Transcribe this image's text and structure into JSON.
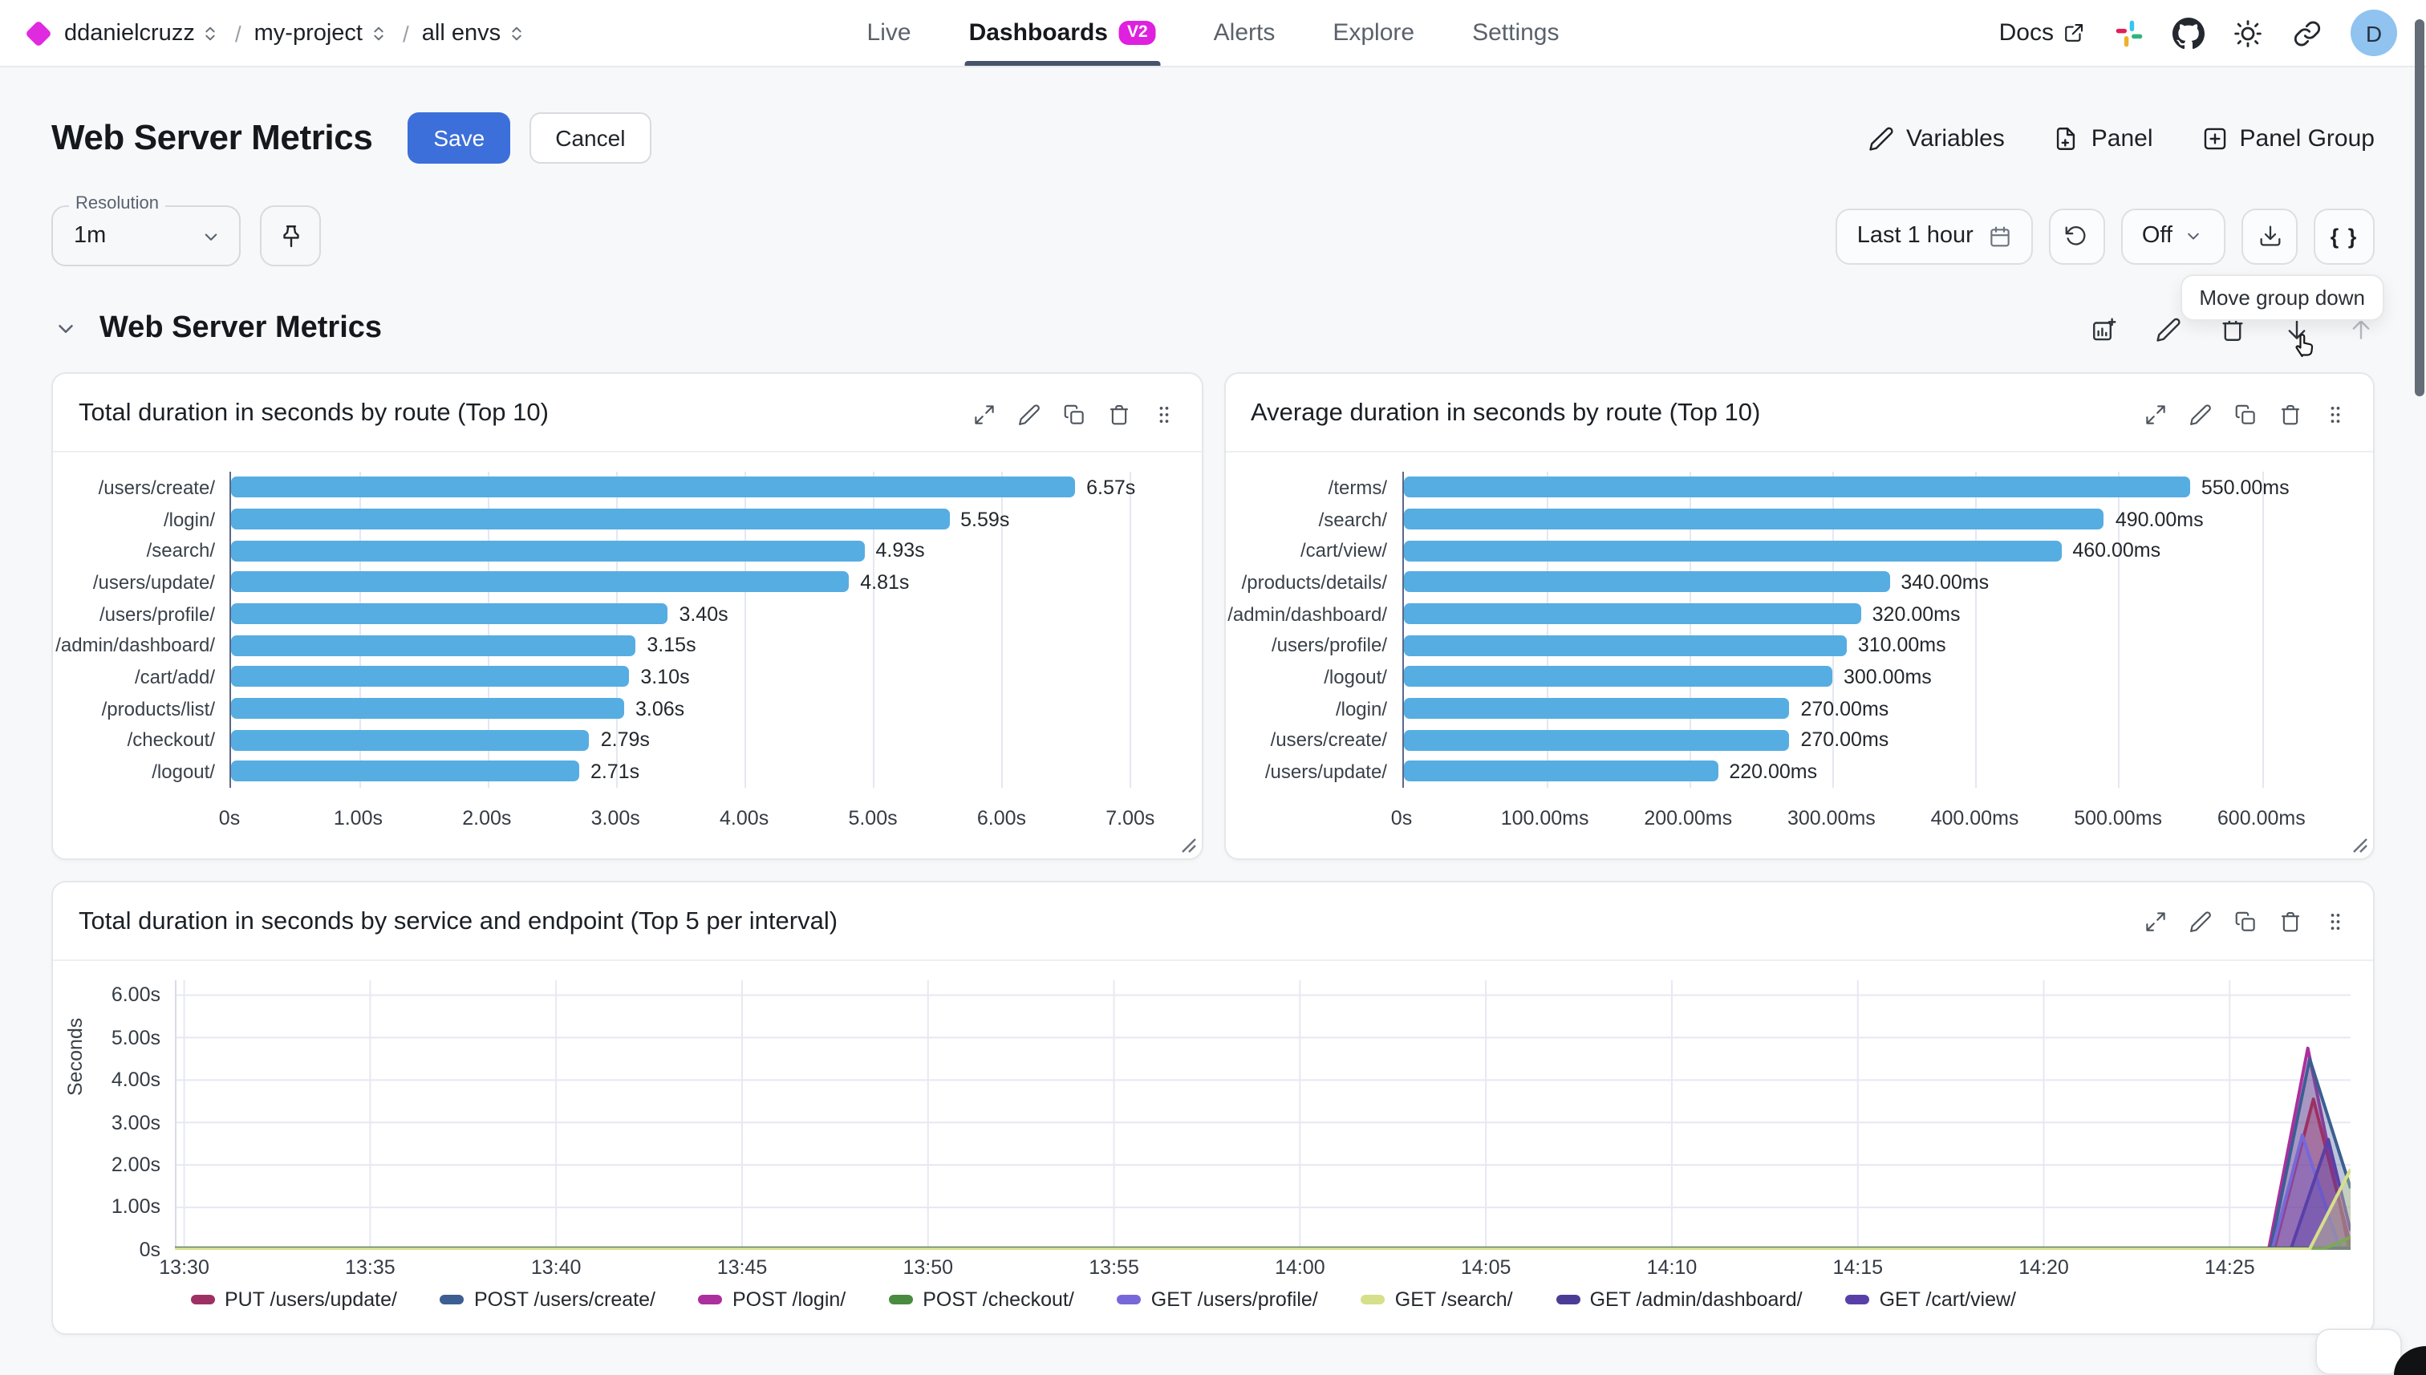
{
  "nav": {
    "breadcrumb": [
      {
        "label": "ddanielcruzz"
      },
      {
        "label": "my-project"
      },
      {
        "label": "all envs"
      }
    ],
    "tabs": [
      {
        "label": "Live",
        "active": false,
        "badge": null
      },
      {
        "label": "Dashboards",
        "active": true,
        "badge": "V2"
      },
      {
        "label": "Alerts",
        "active": false,
        "badge": null
      },
      {
        "label": "Explore",
        "active": false,
        "badge": null
      },
      {
        "label": "Settings",
        "active": false,
        "badge": null
      }
    ],
    "docs_label": "Docs",
    "avatar_initial": "D",
    "badge_color": "#df20df",
    "logo_color": "#e02ae0"
  },
  "page": {
    "title": "Web Server Metrics",
    "save_label": "Save",
    "cancel_label": "Cancel",
    "actions": {
      "variables": "Variables",
      "panel": "Panel",
      "panel_group": "Panel Group"
    }
  },
  "toolbar": {
    "resolution_label": "Resolution",
    "resolution_value": "1m",
    "time_range": "Last 1 hour",
    "auto_refresh": "Off",
    "braces": "{ }"
  },
  "tooltip": "Move group down",
  "group": {
    "title": "Web Server Metrics"
  },
  "panels": [
    {
      "title": "Total duration in seconds by route (Top 10)",
      "chart_data": {
        "type": "bar",
        "bar_color": "#56ade2",
        "categories": [
          "/users/create/",
          "/login/",
          "/search/",
          "/users/update/",
          "/users/profile/",
          "/admin/dashboard/",
          "/cart/add/",
          "/products/list/",
          "/checkout/",
          "/logout/"
        ],
        "values": [
          6.57,
          5.59,
          4.93,
          4.81,
          3.4,
          3.15,
          3.1,
          3.06,
          2.79,
          2.71
        ],
        "value_labels": [
          "6.57s",
          "5.59s",
          "4.93s",
          "4.81s",
          "3.40s",
          "3.15s",
          "3.10s",
          "3.06s",
          "2.79s",
          "2.71s"
        ],
        "xmax": 7.35,
        "ticks": [
          {
            "label": "0s",
            "value": 0
          },
          {
            "label": "1.00s",
            "value": 1
          },
          {
            "label": "2.00s",
            "value": 2
          },
          {
            "label": "3.00s",
            "value": 3
          },
          {
            "label": "4.00s",
            "value": 4
          },
          {
            "label": "5.00s",
            "value": 5
          },
          {
            "label": "6.00s",
            "value": 6
          },
          {
            "label": "7.00s",
            "value": 7
          }
        ]
      }
    },
    {
      "title": "Average duration in seconds by route (Top 10)",
      "chart_data": {
        "type": "bar",
        "bar_color": "#56ade2",
        "categories": [
          "/terms/",
          "/search/",
          "/cart/view/",
          "/products/details/",
          "/admin/dashboard/",
          "/users/profile/",
          "/logout/",
          "/login/",
          "/users/create/",
          "/users/update/"
        ],
        "values": [
          550,
          490,
          460,
          340,
          320,
          310,
          300,
          270,
          270,
          220
        ],
        "value_labels": [
          "550.00ms",
          "490.00ms",
          "460.00ms",
          "340.00ms",
          "320.00ms",
          "310.00ms",
          "300.00ms",
          "270.00ms",
          "270.00ms",
          "220.00ms"
        ],
        "xmax": 660,
        "ticks": [
          {
            "label": "0s",
            "value": 0
          },
          {
            "label": "100.00ms",
            "value": 100
          },
          {
            "label": "200.00ms",
            "value": 200
          },
          {
            "label": "300.00ms",
            "value": 300
          },
          {
            "label": "400.00ms",
            "value": 400
          },
          {
            "label": "500.00ms",
            "value": 500
          },
          {
            "label": "600.00ms",
            "value": 600
          }
        ]
      }
    },
    {
      "title": "Total duration in seconds by service and endpoint (Top 5 per interval)",
      "chart_data": {
        "type": "area",
        "ylabel": "Seconds",
        "ymax": 6,
        "ymax_render": 6.35,
        "y_ticks": [
          {
            "label": "6.00s",
            "value": 6
          },
          {
            "label": "5.00s",
            "value": 5
          },
          {
            "label": "4.00s",
            "value": 4
          },
          {
            "label": "3.00s",
            "value": 3
          },
          {
            "label": "2.00s",
            "value": 2
          },
          {
            "label": "1.00s",
            "value": 1
          },
          {
            "label": "0s",
            "value": 0
          }
        ],
        "x_domain_minutes": [
          0,
          58.5
        ],
        "x_ticks": [
          {
            "label": "13:30",
            "m": 0.25
          },
          {
            "label": "13:35",
            "m": 5.25
          },
          {
            "label": "13:40",
            "m": 10.25
          },
          {
            "label": "13:45",
            "m": 15.25
          },
          {
            "label": "13:50",
            "m": 20.25
          },
          {
            "label": "13:55",
            "m": 25.25
          },
          {
            "label": "14:00",
            "m": 30.25
          },
          {
            "label": "14:05",
            "m": 35.25
          },
          {
            "label": "14:10",
            "m": 40.25
          },
          {
            "label": "14:15",
            "m": 45.25
          },
          {
            "label": "14:20",
            "m": 50.25
          },
          {
            "label": "14:25",
            "m": 55.25
          }
        ],
        "series": [
          {
            "name": "PUT /users/update/",
            "color": "#9d3164",
            "points": [
              [
                0,
                0.02
              ],
              [
                56.45,
                0.02
              ],
              [
                57.5,
                3.55
              ],
              [
                58.5,
                0.1
              ]
            ]
          },
          {
            "name": "POST /users/create/",
            "color": "#3c5e92",
            "points": [
              [
                0,
                0.03
              ],
              [
                56.35,
                0.03
              ],
              [
                57.4,
                4.5
              ],
              [
                58.5,
                1.45
              ]
            ]
          },
          {
            "name": "POST /login/",
            "color": "#ac2f9e",
            "points": [
              [
                0,
                0.02
              ],
              [
                56.3,
                0.02
              ],
              [
                57.35,
                4.75
              ],
              [
                58.45,
                0.05
              ],
              [
                58.5,
                0.05
              ]
            ]
          },
          {
            "name": "POST /checkout/",
            "color": "#4a8b3f",
            "points": [
              [
                0,
                0.03
              ],
              [
                57.8,
                0.03
              ],
              [
                58.5,
                0.3
              ]
            ]
          },
          {
            "name": "GET /users/profile/",
            "color": "#7668d9",
            "points": [
              [
                0,
                0.03
              ],
              [
                56.4,
                0.03
              ],
              [
                57.2,
                2.7
              ],
              [
                58.2,
                0.05
              ],
              [
                58.5,
                0.05
              ]
            ]
          },
          {
            "name": "GET /search/",
            "color": "#d6df8b",
            "points": [
              [
                0,
                0.02
              ],
              [
                57.4,
                0.02
              ],
              [
                58.5,
                1.9
              ]
            ]
          },
          {
            "name": "GET /admin/dashboard/",
            "color": "#4b3d96",
            "points": [
              [
                0,
                0.04
              ],
              [
                58.5,
                0.04
              ]
            ]
          },
          {
            "name": "GET /cart/view/",
            "color": "#5940a8",
            "points": [
              [
                0,
                0.03
              ],
              [
                56.9,
                0.03
              ],
              [
                57.9,
                2.6
              ],
              [
                58.5,
                0.45
              ]
            ]
          }
        ],
        "draw_order": [
          2,
          1,
          0,
          4,
          7,
          6,
          3,
          5
        ],
        "grid": true,
        "legend_position": "bottom"
      }
    }
  ]
}
